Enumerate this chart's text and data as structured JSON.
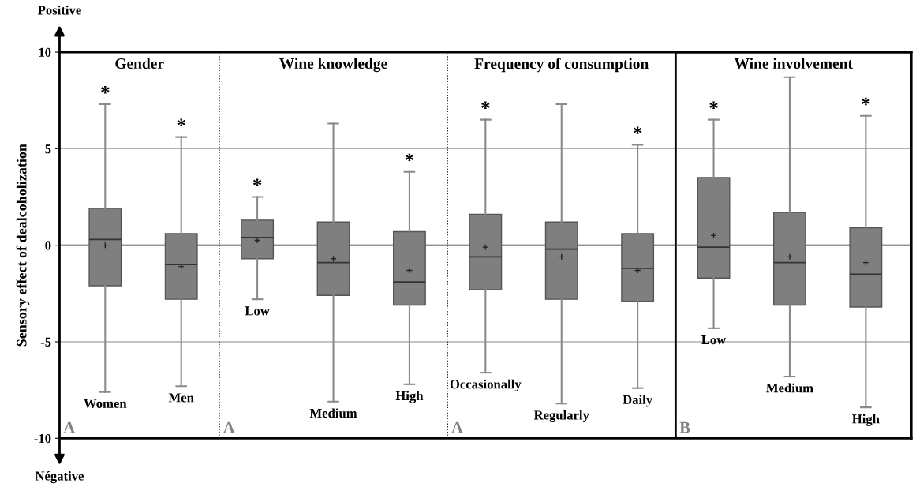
{
  "chart_data": {
    "type": "box",
    "ylabel": "Sensory effect of dealcoholization",
    "categories": [
      "Women",
      "Men",
      "Low",
      "Medium",
      "High",
      "Occasionally",
      "Regularly",
      "Daily",
      "Low",
      "Medium",
      "High"
    ],
    "series": [
      {
        "color": "#7f7f7f",
        "boxes": [
          {
            "low": -7.6,
            "q1": -2.1,
            "median": 0.3,
            "q3": 1.9,
            "high": 7.3,
            "mean": 0.0
          },
          {
            "low": -7.3,
            "q1": -2.8,
            "median": -1.0,
            "q3": 0.6,
            "high": 5.6,
            "mean": -1.1
          },
          {
            "low": -2.8,
            "q1": -0.7,
            "median": 0.4,
            "q3": 1.3,
            "high": 2.5,
            "mean": 0.25
          },
          {
            "low": -8.1,
            "q1": -2.6,
            "median": -0.9,
            "q3": 1.2,
            "high": 6.3,
            "mean": -0.7
          },
          {
            "low": -7.2,
            "q1": -3.1,
            "median": -1.9,
            "q3": 0.7,
            "high": 3.8,
            "mean": -1.3
          },
          {
            "low": -6.6,
            "q1": -2.3,
            "median": -0.6,
            "q3": 1.6,
            "high": 6.5,
            "mean": -0.1
          },
          {
            "low": -8.2,
            "q1": -2.8,
            "median": -0.2,
            "q3": 1.2,
            "high": 7.3,
            "mean": -0.6
          },
          {
            "low": -7.4,
            "q1": -2.9,
            "median": -1.2,
            "q3": 0.6,
            "high": 5.2,
            "mean": -1.3
          },
          {
            "low": -4.3,
            "q1": -1.7,
            "median": -0.1,
            "q3": 3.5,
            "high": 6.5,
            "mean": 0.5
          },
          {
            "low": -6.8,
            "q1": -3.1,
            "median": -0.9,
            "q3": 1.7,
            "high": 8.7,
            "mean": -0.6
          },
          {
            "low": -8.4,
            "q1": -3.2,
            "median": -1.5,
            "q3": 0.9,
            "high": 6.7,
            "mean": -0.9
          }
        ]
      }
    ],
    "ylim": [
      -10,
      10
    ],
    "yticks": [
      -10,
      -5,
      0,
      5,
      10
    ],
    "grid": "y",
    "tick_labels": "y",
    "ref_lines": [
      {
        "axis": "y",
        "value": 0,
        "color": "#404040"
      }
    ],
    "annotations": [
      "Gender",
      "Wine knowledge",
      "Frequency of consumption",
      "Wine involvement",
      "A",
      "A",
      "A",
      "B",
      "Positive",
      "Négative",
      {
        "text": "*",
        "x": "Women",
        "y": 7.3
      },
      {
        "text": "*",
        "x": "Men",
        "y": 5.6
      },
      {
        "text": "*",
        "x": "Low",
        "y": 2.5
      },
      {
        "text": "*",
        "x": "High",
        "y": 3.8
      },
      {
        "text": "*",
        "x": "Occasionally",
        "y": 6.5
      },
      {
        "text": "*",
        "x": "Daily",
        "y": 5.2
      },
      "*",
      "*"
    ]
  }
}
